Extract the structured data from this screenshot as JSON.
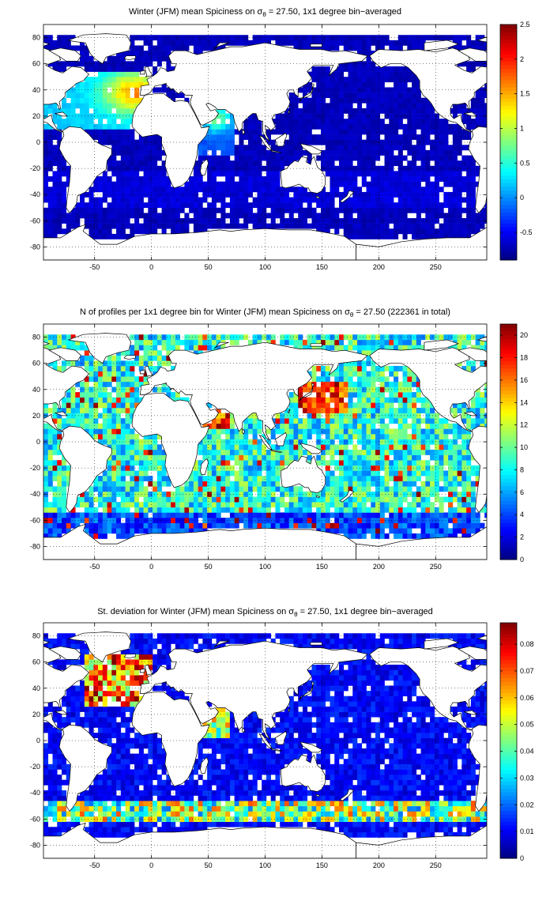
{
  "chart_data": [
    {
      "type": "heatmap",
      "title_pre": "Winter (JFM) mean Spiciness on ",
      "title_sym": "σ",
      "title_sub": "θ",
      "title_post": " = 27.50, 1x1 degree bin−averaged",
      "x_ticks": [
        "-50",
        "0",
        "50",
        "100",
        "150",
        "200",
        "250"
      ],
      "y_ticks": [
        "80",
        "60",
        "40",
        "20",
        "0",
        "-20",
        "-40",
        "-60",
        "-80"
      ],
      "xlim": [
        -95,
        295
      ],
      "ylim": [
        -90,
        90
      ],
      "grid": true,
      "colormap": "jet",
      "colorbar_range": [
        -0.9,
        2.5
      ],
      "colorbar_ticks": [
        "2.5",
        "2",
        "1.5",
        "1",
        "0.5",
        "0",
        "-0.5"
      ],
      "colorbar_tick_values": [
        2.5,
        2,
        1.5,
        1,
        0.5,
        0,
        -0.5
      ]
    },
    {
      "type": "heatmap",
      "title_pre": "N of profiles per 1x1 degree bin for Winter (JFM) mean Spiciness on ",
      "title_sym": "σ",
      "title_sub": "θ",
      "title_post": " = 27.50 (222361 in total)",
      "x_ticks": [
        "-50",
        "0",
        "50",
        "100",
        "150",
        "200",
        "250"
      ],
      "y_ticks": [
        "80",
        "60",
        "40",
        "20",
        "0",
        "-20",
        "-40",
        "-60",
        "-80"
      ],
      "xlim": [
        -95,
        295
      ],
      "ylim": [
        -90,
        90
      ],
      "grid": true,
      "colormap": "jet",
      "colorbar_range": [
        0,
        21
      ],
      "colorbar_ticks": [
        "20",
        "18",
        "16",
        "14",
        "12",
        "10",
        "8",
        "6",
        "4",
        "2",
        "0"
      ],
      "colorbar_tick_values": [
        20,
        18,
        16,
        14,
        12,
        10,
        8,
        6,
        4,
        2,
        0
      ]
    },
    {
      "type": "heatmap",
      "title_pre": "St. deviation for Winter (JFM) mean Spiciness on ",
      "title_sym": "σ",
      "title_sub": "θ",
      "title_post": " = 27.50, 1x1 degree bin−averaged",
      "x_ticks": [
        "-50",
        "0",
        "50",
        "100",
        "150",
        "200",
        "250"
      ],
      "y_ticks": [
        "80",
        "60",
        "40",
        "20",
        "0",
        "-20",
        "-40",
        "-60",
        "-80"
      ],
      "xlim": [
        -95,
        295
      ],
      "ylim": [
        -90,
        90
      ],
      "grid": true,
      "colormap": "jet",
      "colorbar_range": [
        0,
        0.088
      ],
      "colorbar_ticks": [
        "0.08",
        "0.07",
        "0.06",
        "0.05",
        "0.04",
        "0.03",
        "0.02",
        "0.01",
        "0"
      ],
      "colorbar_tick_values": [
        0.08,
        0.07,
        0.06,
        0.05,
        0.04,
        0.03,
        0.02,
        0.01,
        0
      ]
    }
  ]
}
